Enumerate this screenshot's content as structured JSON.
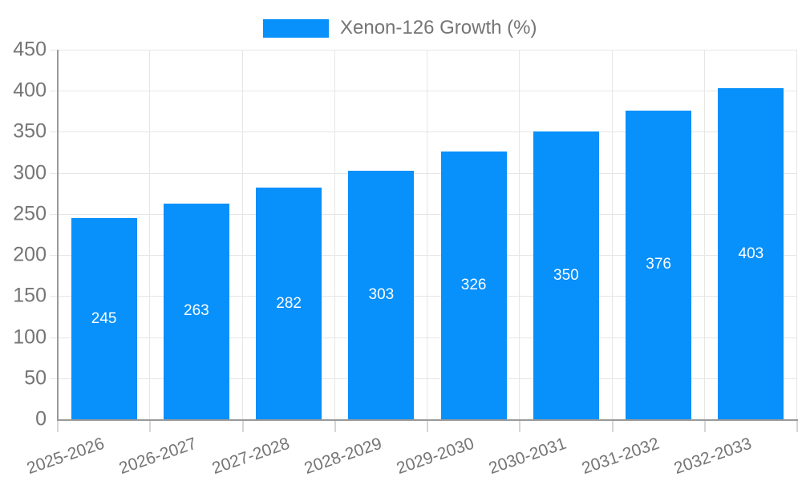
{
  "chart_data": {
    "type": "bar",
    "title": "",
    "legend": {
      "label": "Xenon-126 Growth (%)",
      "position": "top"
    },
    "categories": [
      "2025-2026",
      "2026-2027",
      "2027-2028",
      "2028-2029",
      "2029-2030",
      "2030-2031",
      "2031-2032",
      "2032-2033"
    ],
    "series": [
      {
        "name": "Xenon-126 Growth (%)",
        "values": [
          245,
          263,
          282,
          303,
          326,
          350,
          376,
          403
        ]
      }
    ],
    "value_labels_shown": true,
    "xlabel": "",
    "ylabel": "",
    "ylim": [
      0,
      450
    ],
    "ytick_step": 50,
    "grid": true,
    "x_label_rotation_deg": -19,
    "colors": {
      "bar": "#0890fb",
      "bar_value_text": "#ffffff",
      "axis_text": "#757575",
      "legend_text": "#757575",
      "grid_line": "#e6e6e6",
      "axis_line": "#9a9a9a",
      "tick": "#d6d6d6",
      "background": "#ffffff"
    }
  }
}
